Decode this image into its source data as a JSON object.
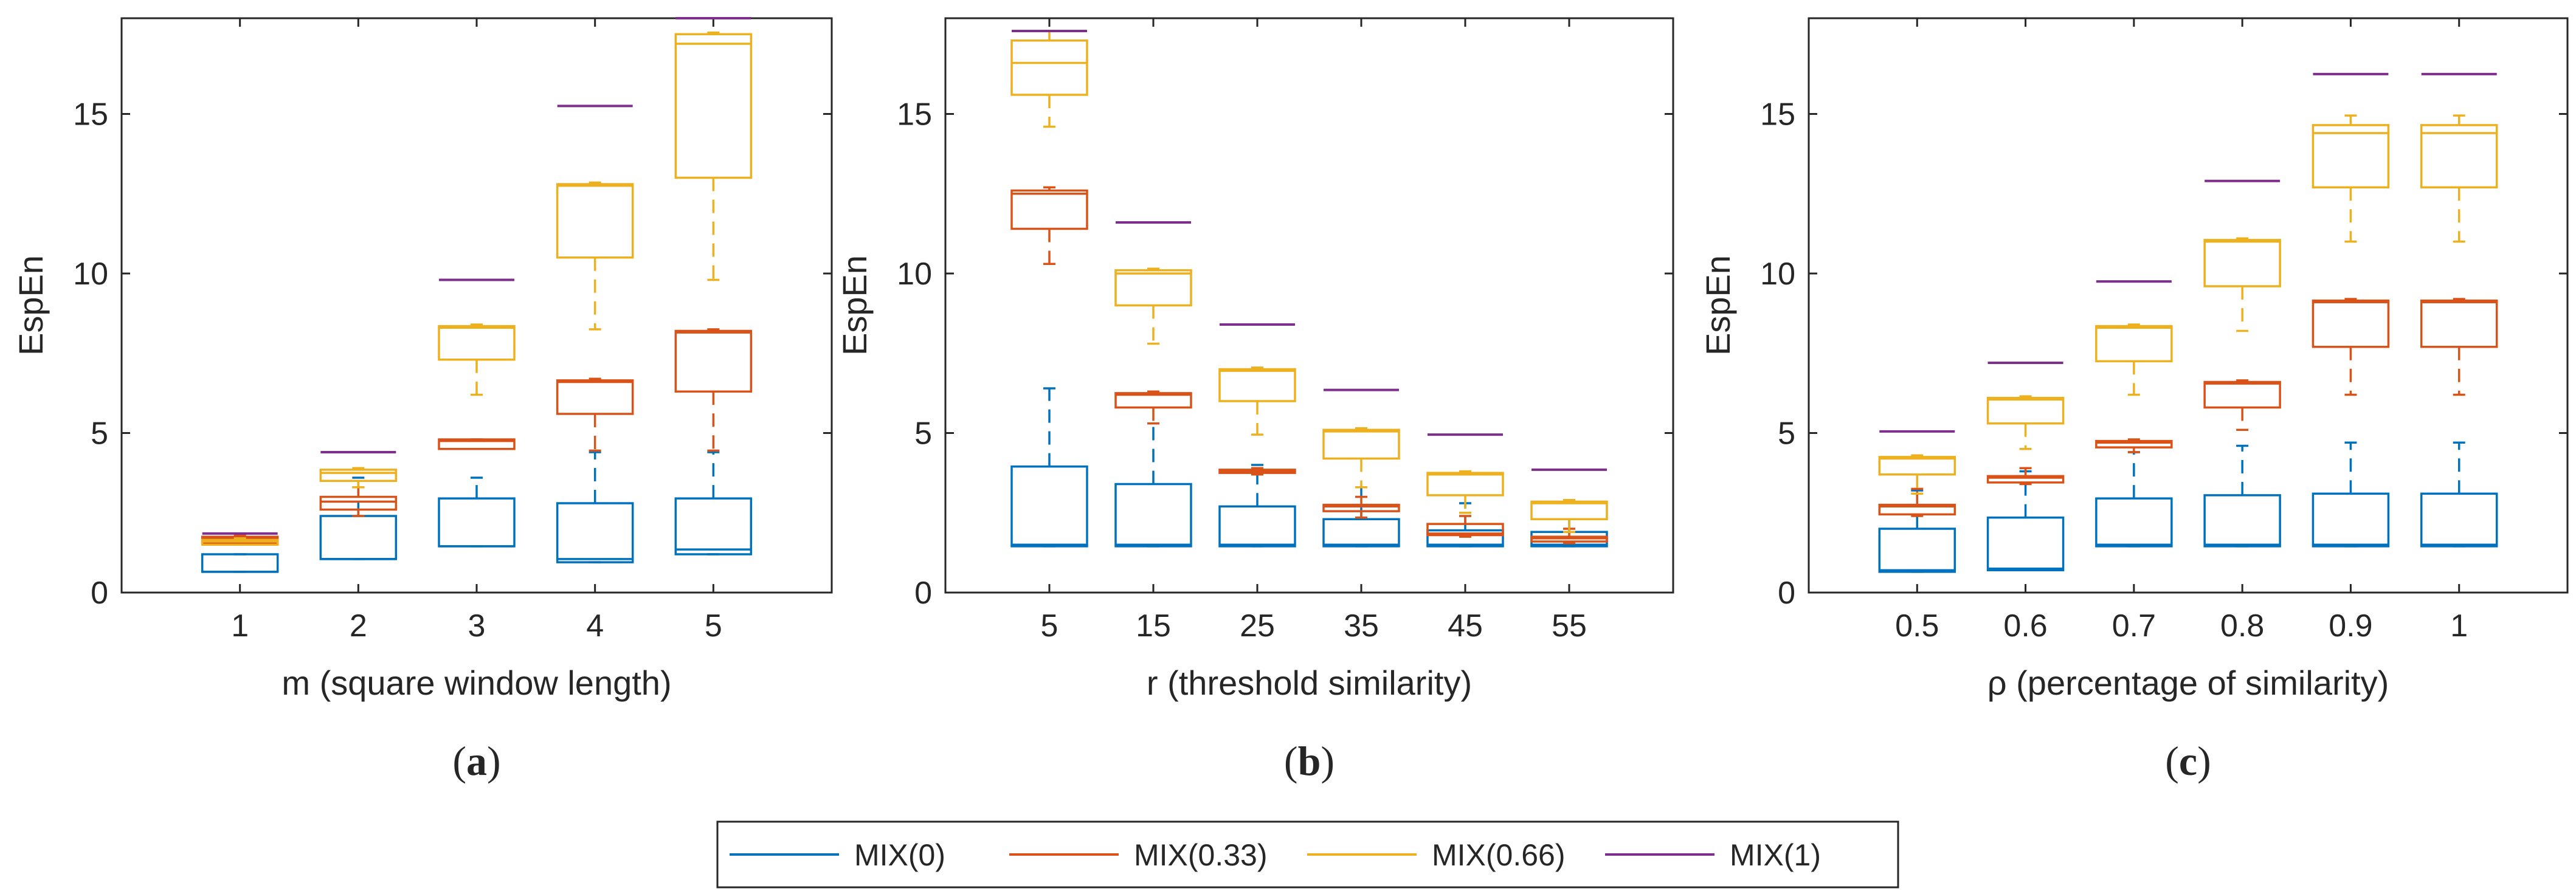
{
  "colors": {
    "MIX(0)": "#0072BD",
    "MIX(0.33)": "#D95319",
    "MIX(0.66)": "#EDB120",
    "MIX(1)": "#7E2F8E"
  },
  "legend": {
    "entries": [
      "MIX(0)",
      "MIX(0.33)",
      "MIX(0.66)",
      "MIX(1)"
    ]
  },
  "chart_data": [
    {
      "type": "box",
      "panel_label": {
        "open": "(",
        "letter": "a",
        "close": ")"
      },
      "xlabel": "m (square window length)",
      "ylabel": "EspEn",
      "ylim": [
        0,
        18
      ],
      "yticks": [
        0,
        5,
        10,
        15
      ],
      "categories": [
        "1",
        "2",
        "3",
        "4",
        "5"
      ],
      "series": [
        {
          "name": "MIX(0)",
          "boxes": [
            {
              "whisker_low": 0.65,
              "q1": 0.65,
              "median": 0.65,
              "q3": 1.2,
              "whisker_high": 1.2
            },
            {
              "whisker_low": 1.05,
              "q1": 1.05,
              "median": 1.05,
              "q3": 2.4,
              "whisker_high": 3.6
            },
            {
              "whisker_low": 1.45,
              "q1": 1.45,
              "median": 1.45,
              "q3": 2.95,
              "whisker_high": 3.6
            },
            {
              "whisker_low": 0.95,
              "q1": 0.95,
              "median": 1.05,
              "q3": 2.8,
              "whisker_high": 4.4
            },
            {
              "whisker_low": 1.2,
              "q1": 1.2,
              "median": 1.35,
              "q3": 2.95,
              "whisker_high": 4.4
            }
          ]
        },
        {
          "name": "MIX(0.33)",
          "boxes": [
            {
              "whisker_low": 1.55,
              "q1": 1.55,
              "median": 1.7,
              "q3": 1.75,
              "whisker_high": 1.8
            },
            {
              "whisker_low": 2.4,
              "q1": 2.6,
              "median": 2.85,
              "q3": 3.0,
              "whisker_high": 3.3
            },
            {
              "whisker_low": 4.5,
              "q1": 4.5,
              "median": 4.75,
              "q3": 4.8,
              "whisker_high": 4.8
            },
            {
              "whisker_low": 4.45,
              "q1": 5.6,
              "median": 6.6,
              "q3": 6.65,
              "whisker_high": 6.7
            },
            {
              "whisker_low": 4.45,
              "q1": 6.3,
              "median": 8.15,
              "q3": 8.2,
              "whisker_high": 8.25
            }
          ]
        },
        {
          "name": "MIX(0.66)",
          "boxes": [
            {
              "whisker_low": 1.5,
              "q1": 1.5,
              "median": 1.6,
              "q3": 1.65,
              "whisker_high": 1.7
            },
            {
              "whisker_low": 3.3,
              "q1": 3.5,
              "median": 3.75,
              "q3": 3.85,
              "whisker_high": 3.9
            },
            {
              "whisker_low": 6.2,
              "q1": 7.3,
              "median": 8.3,
              "q3": 8.35,
              "whisker_high": 8.4
            },
            {
              "whisker_low": 8.25,
              "q1": 10.5,
              "median": 12.75,
              "q3": 12.8,
              "whisker_high": 12.85
            },
            {
              "whisker_low": 9.8,
              "q1": 13.0,
              "median": 17.2,
              "q3": 17.5,
              "whisker_high": 17.55
            }
          ]
        },
        {
          "name": "MIX(1)",
          "boxes": [
            {
              "median": 1.85
            },
            {
              "median": 4.4
            },
            {
              "median": 9.8
            },
            {
              "median": 15.25
            },
            {
              "median": 18.0
            }
          ]
        }
      ]
    },
    {
      "type": "box",
      "panel_label": {
        "open": "(",
        "letter": "b",
        "close": ")"
      },
      "xlabel": "r (threshold similarity)",
      "ylabel": "EspEn",
      "ylim": [
        0,
        18
      ],
      "yticks": [
        0,
        5,
        10,
        15
      ],
      "categories": [
        "5",
        "15",
        "25",
        "35",
        "45",
        "55"
      ],
      "series": [
        {
          "name": "MIX(0)",
          "boxes": [
            {
              "whisker_low": 1.45,
              "q1": 1.45,
              "median": 1.5,
              "q3": 3.95,
              "whisker_high": 6.4
            },
            {
              "whisker_low": 1.45,
              "q1": 1.45,
              "median": 1.5,
              "q3": 3.4,
              "whisker_high": 5.3
            },
            {
              "whisker_low": 1.45,
              "q1": 1.45,
              "median": 1.5,
              "q3": 2.7,
              "whisker_high": 4.0
            },
            {
              "whisker_low": 1.45,
              "q1": 1.45,
              "median": 1.5,
              "q3": 2.3,
              "whisker_high": 3.3
            },
            {
              "whisker_low": 1.45,
              "q1": 1.45,
              "median": 1.5,
              "q3": 1.95,
              "whisker_high": 2.8
            },
            {
              "whisker_low": 1.45,
              "q1": 1.45,
              "median": 1.5,
              "q3": 1.9,
              "whisker_high": 2.3
            }
          ]
        },
        {
          "name": "MIX(0.33)",
          "boxes": [
            {
              "whisker_low": 10.3,
              "q1": 11.4,
              "median": 12.5,
              "q3": 12.6,
              "whisker_high": 12.7
            },
            {
              "whisker_low": 5.3,
              "q1": 5.8,
              "median": 6.2,
              "q3": 6.25,
              "whisker_high": 6.3
            },
            {
              "whisker_low": 3.7,
              "q1": 3.75,
              "median": 3.8,
              "q3": 3.85,
              "whisker_high": 3.9
            },
            {
              "whisker_low": 2.35,
              "q1": 2.55,
              "median": 2.7,
              "q3": 2.75,
              "whisker_high": 3.0
            },
            {
              "whisker_low": 1.75,
              "q1": 1.8,
              "median": 1.85,
              "q3": 2.15,
              "whisker_high": 2.4
            },
            {
              "whisker_low": 1.55,
              "q1": 1.6,
              "median": 1.7,
              "q3": 1.75,
              "whisker_high": 2.0
            }
          ]
        },
        {
          "name": "MIX(0.66)",
          "boxes": [
            {
              "whisker_low": 14.6,
              "q1": 15.6,
              "median": 16.6,
              "q3": 17.3,
              "whisker_high": 17.6
            },
            {
              "whisker_low": 7.8,
              "q1": 9.0,
              "median": 10.0,
              "q3": 10.1,
              "whisker_high": 10.15
            },
            {
              "whisker_low": 4.95,
              "q1": 6.0,
              "median": 6.95,
              "q3": 7.0,
              "whisker_high": 7.05
            },
            {
              "whisker_low": 3.3,
              "q1": 4.2,
              "median": 5.05,
              "q3": 5.1,
              "whisker_high": 5.15
            },
            {
              "whisker_low": 2.5,
              "q1": 3.05,
              "median": 3.7,
              "q3": 3.75,
              "whisker_high": 3.8
            },
            {
              "whisker_low": 1.9,
              "q1": 2.3,
              "median": 2.8,
              "q3": 2.85,
              "whisker_high": 2.9
            }
          ]
        },
        {
          "name": "MIX(1)",
          "boxes": [
            {
              "median": 17.6
            },
            {
              "median": 11.6
            },
            {
              "median": 8.4
            },
            {
              "median": 6.35
            },
            {
              "median": 4.95
            },
            {
              "median": 3.85
            }
          ]
        }
      ]
    },
    {
      "type": "box",
      "panel_label": {
        "open": "(",
        "letter": "c",
        "close": ")"
      },
      "xlabel": "ρ (percentage of similarity)",
      "ylabel": "EspEn",
      "ylim": [
        0,
        18
      ],
      "yticks": [
        0,
        5,
        10,
        15
      ],
      "categories": [
        "0.5",
        "0.6",
        "0.7",
        "0.8",
        "0.9",
        "1"
      ],
      "series": [
        {
          "name": "MIX(0)",
          "boxes": [
            {
              "whisker_low": 0.65,
              "q1": 0.65,
              "median": 0.7,
              "q3": 2.0,
              "whisker_high": 3.2
            },
            {
              "whisker_low": 0.7,
              "q1": 0.7,
              "median": 0.75,
              "q3": 2.35,
              "whisker_high": 3.8
            },
            {
              "whisker_low": 1.45,
              "q1": 1.45,
              "median": 1.5,
              "q3": 2.95,
              "whisker_high": 4.4
            },
            {
              "whisker_low": 1.45,
              "q1": 1.45,
              "median": 1.5,
              "q3": 3.05,
              "whisker_high": 4.6
            },
            {
              "whisker_low": 1.45,
              "q1": 1.45,
              "median": 1.5,
              "q3": 3.1,
              "whisker_high": 4.7
            },
            {
              "whisker_low": 1.45,
              "q1": 1.45,
              "median": 1.5,
              "q3": 3.1,
              "whisker_high": 4.7
            }
          ]
        },
        {
          "name": "MIX(0.33)",
          "boxes": [
            {
              "whisker_low": 2.4,
              "q1": 2.45,
              "median": 2.7,
              "q3": 2.75,
              "whisker_high": 3.25
            },
            {
              "whisker_low": 3.4,
              "q1": 3.45,
              "median": 3.6,
              "q3": 3.65,
              "whisker_high": 3.9
            },
            {
              "whisker_low": 4.4,
              "q1": 4.55,
              "median": 4.7,
              "q3": 4.75,
              "whisker_high": 4.8
            },
            {
              "whisker_low": 5.1,
              "q1": 5.8,
              "median": 6.55,
              "q3": 6.6,
              "whisker_high": 6.65
            },
            {
              "whisker_low": 6.2,
              "q1": 7.7,
              "median": 9.1,
              "q3": 9.15,
              "whisker_high": 9.2
            },
            {
              "whisker_low": 6.2,
              "q1": 7.7,
              "median": 9.1,
              "q3": 9.15,
              "whisker_high": 9.2
            }
          ]
        },
        {
          "name": "MIX(0.66)",
          "boxes": [
            {
              "whisker_low": 3.1,
              "q1": 3.7,
              "median": 4.2,
              "q3": 4.25,
              "whisker_high": 4.3
            },
            {
              "whisker_low": 4.5,
              "q1": 5.3,
              "median": 6.05,
              "q3": 6.1,
              "whisker_high": 6.15
            },
            {
              "whisker_low": 6.2,
              "q1": 7.25,
              "median": 8.3,
              "q3": 8.35,
              "whisker_high": 8.4
            },
            {
              "whisker_low": 8.2,
              "q1": 9.6,
              "median": 11.0,
              "q3": 11.05,
              "whisker_high": 11.1
            },
            {
              "whisker_low": 11.0,
              "q1": 12.7,
              "median": 14.4,
              "q3": 14.65,
              "whisker_high": 14.95
            },
            {
              "whisker_low": 11.0,
              "q1": 12.7,
              "median": 14.4,
              "q3": 14.65,
              "whisker_high": 14.95
            }
          ]
        },
        {
          "name": "MIX(1)",
          "boxes": [
            {
              "median": 5.05
            },
            {
              "median": 7.2
            },
            {
              "median": 9.75
            },
            {
              "median": 12.9
            },
            {
              "median": 16.25
            },
            {
              "median": 16.25
            }
          ]
        }
      ]
    }
  ]
}
